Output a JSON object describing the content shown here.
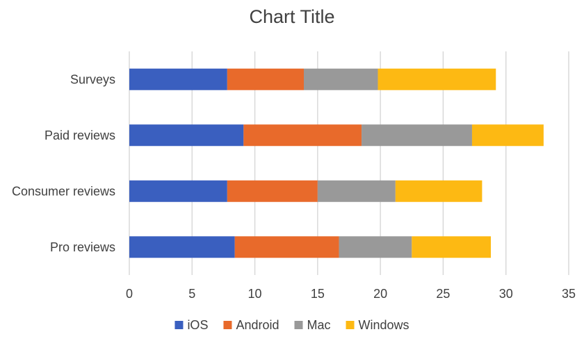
{
  "chart_data": {
    "type": "bar",
    "orientation": "horizontal",
    "stacked": true,
    "title": "Chart Title",
    "xlabel": "",
    "ylabel": "",
    "categories": [
      "Pro reviews",
      "Consumer reviews",
      "Paid reviews",
      "Surveys"
    ],
    "series": [
      {
        "name": "iOS",
        "color": "#3A5FBF",
        "values": [
          8.4,
          7.8,
          9.1,
          7.8
        ]
      },
      {
        "name": "Android",
        "color": "#E86A2B",
        "values": [
          8.3,
          7.2,
          9.4,
          6.1
        ]
      },
      {
        "name": "Mac",
        "color": "#999999",
        "values": [
          5.8,
          6.2,
          8.8,
          5.9
        ]
      },
      {
        "name": "Windows",
        "color": "#FDB913",
        "values": [
          6.3,
          6.9,
          5.7,
          9.4
        ]
      }
    ],
    "xlim": [
      0,
      35
    ],
    "xticks": [
      "0",
      "5",
      "10",
      "15",
      "20",
      "25",
      "30",
      "35"
    ],
    "grid": "vertical",
    "legend": "bottom"
  }
}
